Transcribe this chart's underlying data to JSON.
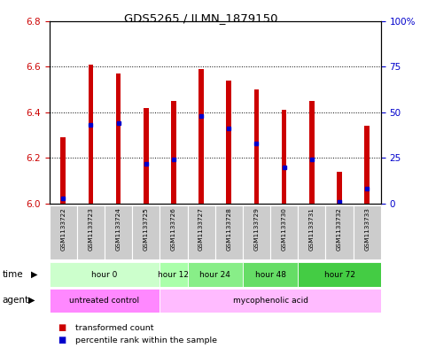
{
  "title": "GDS5265 / ILMN_1879150",
  "samples": [
    "GSM1133722",
    "GSM1133723",
    "GSM1133724",
    "GSM1133725",
    "GSM1133726",
    "GSM1133727",
    "GSM1133728",
    "GSM1133729",
    "GSM1133730",
    "GSM1133731",
    "GSM1133732",
    "GSM1133733"
  ],
  "bar_bottoms": [
    6.0,
    6.0,
    6.0,
    6.0,
    6.0,
    6.0,
    6.0,
    6.0,
    6.0,
    6.0,
    6.0,
    6.0
  ],
  "bar_tops": [
    6.29,
    6.61,
    6.57,
    6.42,
    6.45,
    6.59,
    6.54,
    6.5,
    6.41,
    6.45,
    6.14,
    6.34
  ],
  "percentile_ranks": [
    3,
    43,
    44,
    22,
    24,
    48,
    41,
    33,
    20,
    24,
    1,
    8
  ],
  "ylim_left": [
    6.0,
    6.8
  ],
  "ylim_right": [
    0,
    100
  ],
  "yticks_left": [
    6.0,
    6.2,
    6.4,
    6.6,
    6.8
  ],
  "yticks_right": [
    0,
    25,
    50,
    75,
    100
  ],
  "ytick_labels_right": [
    "0",
    "25",
    "50",
    "75",
    "100%"
  ],
  "bar_color": "#cc0000",
  "dot_color": "#0000cc",
  "grid_color": "#000000",
  "time_groups": [
    {
      "label": "hour 0",
      "start": 0,
      "end": 4,
      "color": "#ccffcc"
    },
    {
      "label": "hour 12",
      "start": 4,
      "end": 5,
      "color": "#aaffaa"
    },
    {
      "label": "hour 24",
      "start": 5,
      "end": 7,
      "color": "#88ee88"
    },
    {
      "label": "hour 48",
      "start": 7,
      "end": 9,
      "color": "#66dd66"
    },
    {
      "label": "hour 72",
      "start": 9,
      "end": 12,
      "color": "#44cc44"
    }
  ],
  "agent_groups": [
    {
      "label": "untreated control",
      "start": 0,
      "end": 4,
      "color": "#ff88ff"
    },
    {
      "label": "mycophenolic acid",
      "start": 4,
      "end": 12,
      "color": "#ffbbff"
    }
  ],
  "bar_width": 0.18,
  "bg_color": "#ffffff",
  "plot_bg_color": "#ffffff",
  "tick_label_color_left": "#cc0000",
  "tick_label_color_right": "#0000cc",
  "sample_bg_color": "#cccccc",
  "sample_divider_color": "#ffffff"
}
